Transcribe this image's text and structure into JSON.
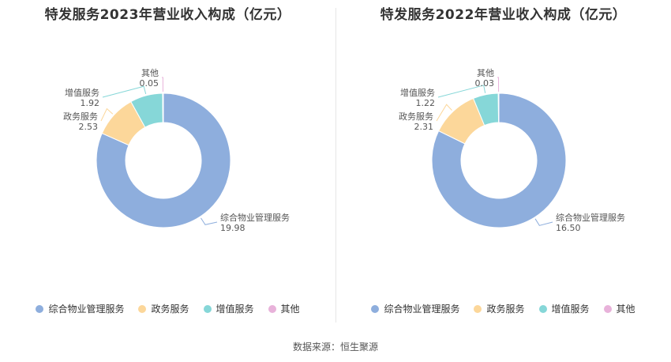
{
  "colors": [
    "#8eaedd",
    "#fcd79a",
    "#86d7d8",
    "#e8b2da"
  ],
  "source": "数据来源：恒生聚源",
  "chart_data": [
    {
      "type": "pie",
      "title": "特发服务2023年营业收入构成（亿元）",
      "categories": [
        "综合物业管理服务",
        "政务服务",
        "增值服务",
        "其他"
      ],
      "values": [
        19.98,
        2.53,
        1.92,
        0.05
      ],
      "value_labels": [
        "19.98",
        "2.53",
        "1.92",
        "0.05"
      ],
      "legend_position": "bottom"
    },
    {
      "type": "pie",
      "title": "特发服务2022年营业收入构成（亿元）",
      "categories": [
        "综合物业管理服务",
        "政务服务",
        "增值服务",
        "其他"
      ],
      "values": [
        16.5,
        2.31,
        1.22,
        0.03
      ],
      "value_labels": [
        "16.50",
        "2.31",
        "1.22",
        "0.03"
      ],
      "legend_position": "bottom"
    }
  ]
}
